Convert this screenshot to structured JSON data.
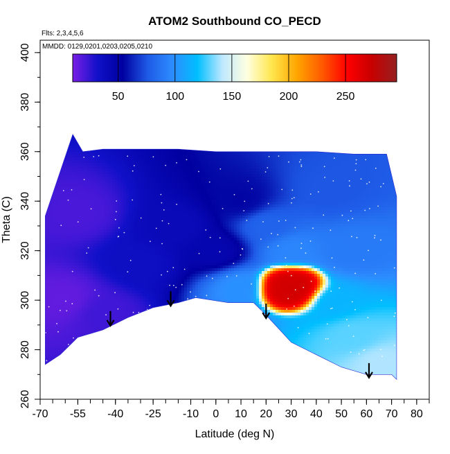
{
  "chart_data": {
    "type": "heatmap",
    "title": "ATOM2 Southbound CO_PECD",
    "annotations": [
      "Flts: 2,3,4,5,6",
      "MMDD: 0129,0201,0203,0205,0210"
    ],
    "xlabel": "Latitude (deg N)",
    "ylabel": "Theta (C)",
    "xlim": [
      -70,
      85
    ],
    "ylim": [
      260,
      405
    ],
    "xticks": [
      -70,
      -55,
      -40,
      -25,
      -10,
      0,
      10,
      20,
      30,
      40,
      50,
      60,
      70,
      80
    ],
    "xtick_labels": [
      "-70",
      "-55",
      "-40",
      "-25",
      "-10",
      "0",
      "10",
      "20",
      "30",
      "40",
      "50",
      "60",
      "70",
      "80"
    ],
    "yticks": [
      260,
      280,
      300,
      320,
      340,
      360,
      380,
      400
    ],
    "ytick_labels": [
      "260",
      "280",
      "300",
      "320",
      "340",
      "360",
      "380",
      "400"
    ],
    "colorbar": {
      "range": [
        10,
        295
      ],
      "ticks": [
        50,
        100,
        150,
        200,
        250
      ],
      "tick_labels": [
        "50",
        "100",
        "150",
        "200",
        "250"
      ],
      "colors": [
        "#7a1fe6",
        "#1010c8",
        "#0000a0",
        "#1e5ae6",
        "#2d8cff",
        "#00bfff",
        "#bfe8ff",
        "#ffffe0",
        "#ffe64d",
        "#ffa500",
        "#ff5a00",
        "#ff0000",
        "#c80000",
        "#962020"
      ]
    },
    "domain_top": [
      [
        -68,
        334
      ],
      [
        -62,
        352
      ],
      [
        -57,
        367
      ],
      [
        -53,
        360
      ],
      [
        -45,
        361
      ],
      [
        -30,
        361
      ],
      [
        -15,
        361
      ],
      [
        0,
        360
      ],
      [
        20,
        360
      ],
      [
        40,
        360
      ],
      [
        55,
        359
      ],
      [
        68,
        359
      ],
      [
        72,
        342
      ]
    ],
    "domain_bottom": [
      [
        72,
        268
      ],
      [
        70,
        270
      ],
      [
        60,
        270
      ],
      [
        50,
        273
      ],
      [
        40,
        278
      ],
      [
        30,
        283
      ],
      [
        20,
        294
      ],
      [
        15,
        299
      ],
      [
        5,
        299
      ],
      [
        -8,
        301
      ],
      [
        -15,
        299
      ],
      [
        -25,
        297
      ],
      [
        -35,
        293
      ],
      [
        -45,
        288
      ],
      [
        -55,
        285
      ],
      [
        -62,
        278
      ],
      [
        -68,
        274
      ]
    ],
    "blobs": [
      {
        "lat": -60,
        "theta": 300,
        "value": 15
      },
      {
        "lat": -55,
        "theta": 335,
        "value": 20
      },
      {
        "lat": -45,
        "theta": 295,
        "value": 22
      },
      {
        "lat": -30,
        "theta": 315,
        "value": 35
      },
      {
        "lat": -15,
        "theta": 330,
        "value": 40
      },
      {
        "lat": 0,
        "theta": 320,
        "value": 45
      },
      {
        "lat": 10,
        "theta": 340,
        "value": 55
      },
      {
        "lat": 20,
        "theta": 330,
        "value": 80
      },
      {
        "lat": 30,
        "theta": 320,
        "value": 95
      },
      {
        "lat": 45,
        "theta": 345,
        "value": 75
      },
      {
        "lat": 55,
        "theta": 320,
        "value": 90
      },
      {
        "lat": 45,
        "theta": 300,
        "value": 115
      },
      {
        "lat": 55,
        "theta": 285,
        "value": 130
      },
      {
        "lat": 65,
        "theta": 275,
        "value": 140
      },
      {
        "lat": 10,
        "theta": 305,
        "value": 100
      },
      {
        "lat": 30,
        "theta": 305,
        "value": 270
      }
    ],
    "flight_markers": [
      {
        "lat": -42,
        "theta": 290
      },
      {
        "lat": -18,
        "theta": 298
      },
      {
        "lat": 20,
        "theta": 293
      },
      {
        "lat": 61,
        "theta": 269
      }
    ]
  }
}
